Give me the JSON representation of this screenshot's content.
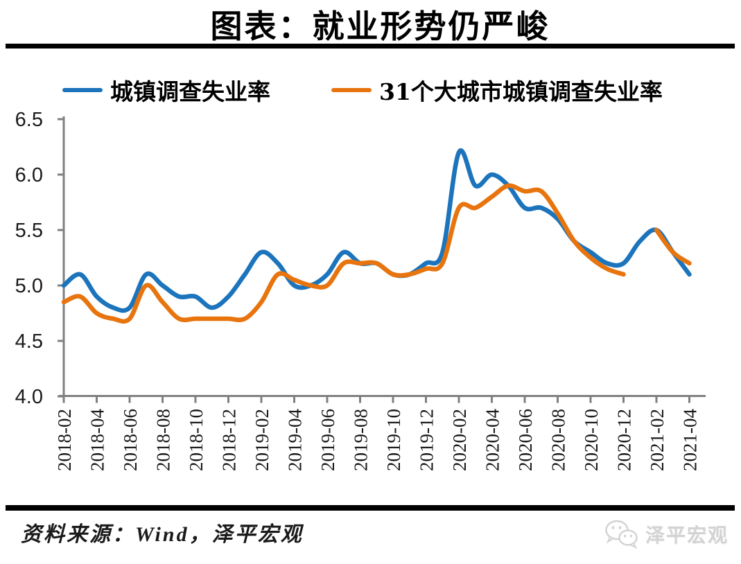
{
  "title": "图表：就业形势仍严峻",
  "legend": [
    {
      "label": "城镇调查失业率",
      "color": "#1B74BC"
    },
    {
      "label": "31个大城市城镇调查失业率",
      "color": "#E8740E"
    }
  ],
  "footer": {
    "source_text": "资料来源：Wind，泽平宏观",
    "watermark_text": "泽平宏观",
    "watermark_icon": "wechat-icon",
    "watermark_color": "#cccccc"
  },
  "chart_data": {
    "type": "line",
    "title": "图表：就业形势仍严峻",
    "xlabel": "",
    "ylabel": "",
    "ylim": [
      4.0,
      6.5
    ],
    "grid": false,
    "legend_position": "top",
    "axis_color": "#7F7F7F",
    "tick_label_color": "#1a1a1a",
    "y_tick_labels": [
      "4.0",
      "4.5",
      "5.0",
      "5.5",
      "6.0",
      "6.5"
    ],
    "x_tick_labels": [
      "2018-02",
      "2018-04",
      "2018-06",
      "2018-08",
      "2018-10",
      "2018-12",
      "2019-02",
      "2019-04",
      "2019-06",
      "2019-08",
      "2019-10",
      "2019-12",
      "2020-02",
      "2020-04",
      "2020-06",
      "2020-08",
      "2020-10",
      "2020-12",
      "2021-02",
      "2021-04"
    ],
    "x": [
      "2018-02",
      "2018-03",
      "2018-04",
      "2018-05",
      "2018-06",
      "2018-07",
      "2018-08",
      "2018-09",
      "2018-10",
      "2018-11",
      "2018-12",
      "2019-01",
      "2019-02",
      "2019-03",
      "2019-04",
      "2019-05",
      "2019-06",
      "2019-07",
      "2019-08",
      "2019-09",
      "2019-10",
      "2019-11",
      "2019-12",
      "2020-01",
      "2020-02",
      "2020-03",
      "2020-04",
      "2020-05",
      "2020-06",
      "2020-07",
      "2020-08",
      "2020-09",
      "2020-10",
      "2020-11",
      "2020-12",
      "2021-01",
      "2021-02",
      "2021-03",
      "2021-04"
    ],
    "series": [
      {
        "name": "城镇调查失业率",
        "color": "#1B74BC",
        "values": [
          5.0,
          5.1,
          4.9,
          4.8,
          4.8,
          5.1,
          5.0,
          4.9,
          4.9,
          4.8,
          4.9,
          5.1,
          5.3,
          5.2,
          5.0,
          5.0,
          5.1,
          5.3,
          5.2,
          5.2,
          5.1,
          5.1,
          5.2,
          5.3,
          6.2,
          5.9,
          6.0,
          5.9,
          5.7,
          5.7,
          5.6,
          5.4,
          5.3,
          5.2,
          5.2,
          5.4,
          5.5,
          5.3,
          5.1
        ]
      },
      {
        "name": "31个大城市城镇调查失业率",
        "color": "#E8740E",
        "values": [
          4.85,
          4.9,
          4.75,
          4.7,
          4.7,
          5.0,
          4.85,
          4.7,
          4.7,
          4.7,
          4.7,
          4.7,
          4.85,
          5.1,
          5.05,
          5.0,
          5.0,
          5.2,
          5.2,
          5.2,
          5.1,
          5.1,
          5.15,
          5.2,
          5.7,
          5.7,
          5.8,
          5.9,
          5.85,
          5.85,
          5.65,
          5.4,
          5.25,
          5.15,
          5.1,
          null,
          5.5,
          5.3,
          5.2
        ]
      }
    ]
  }
}
